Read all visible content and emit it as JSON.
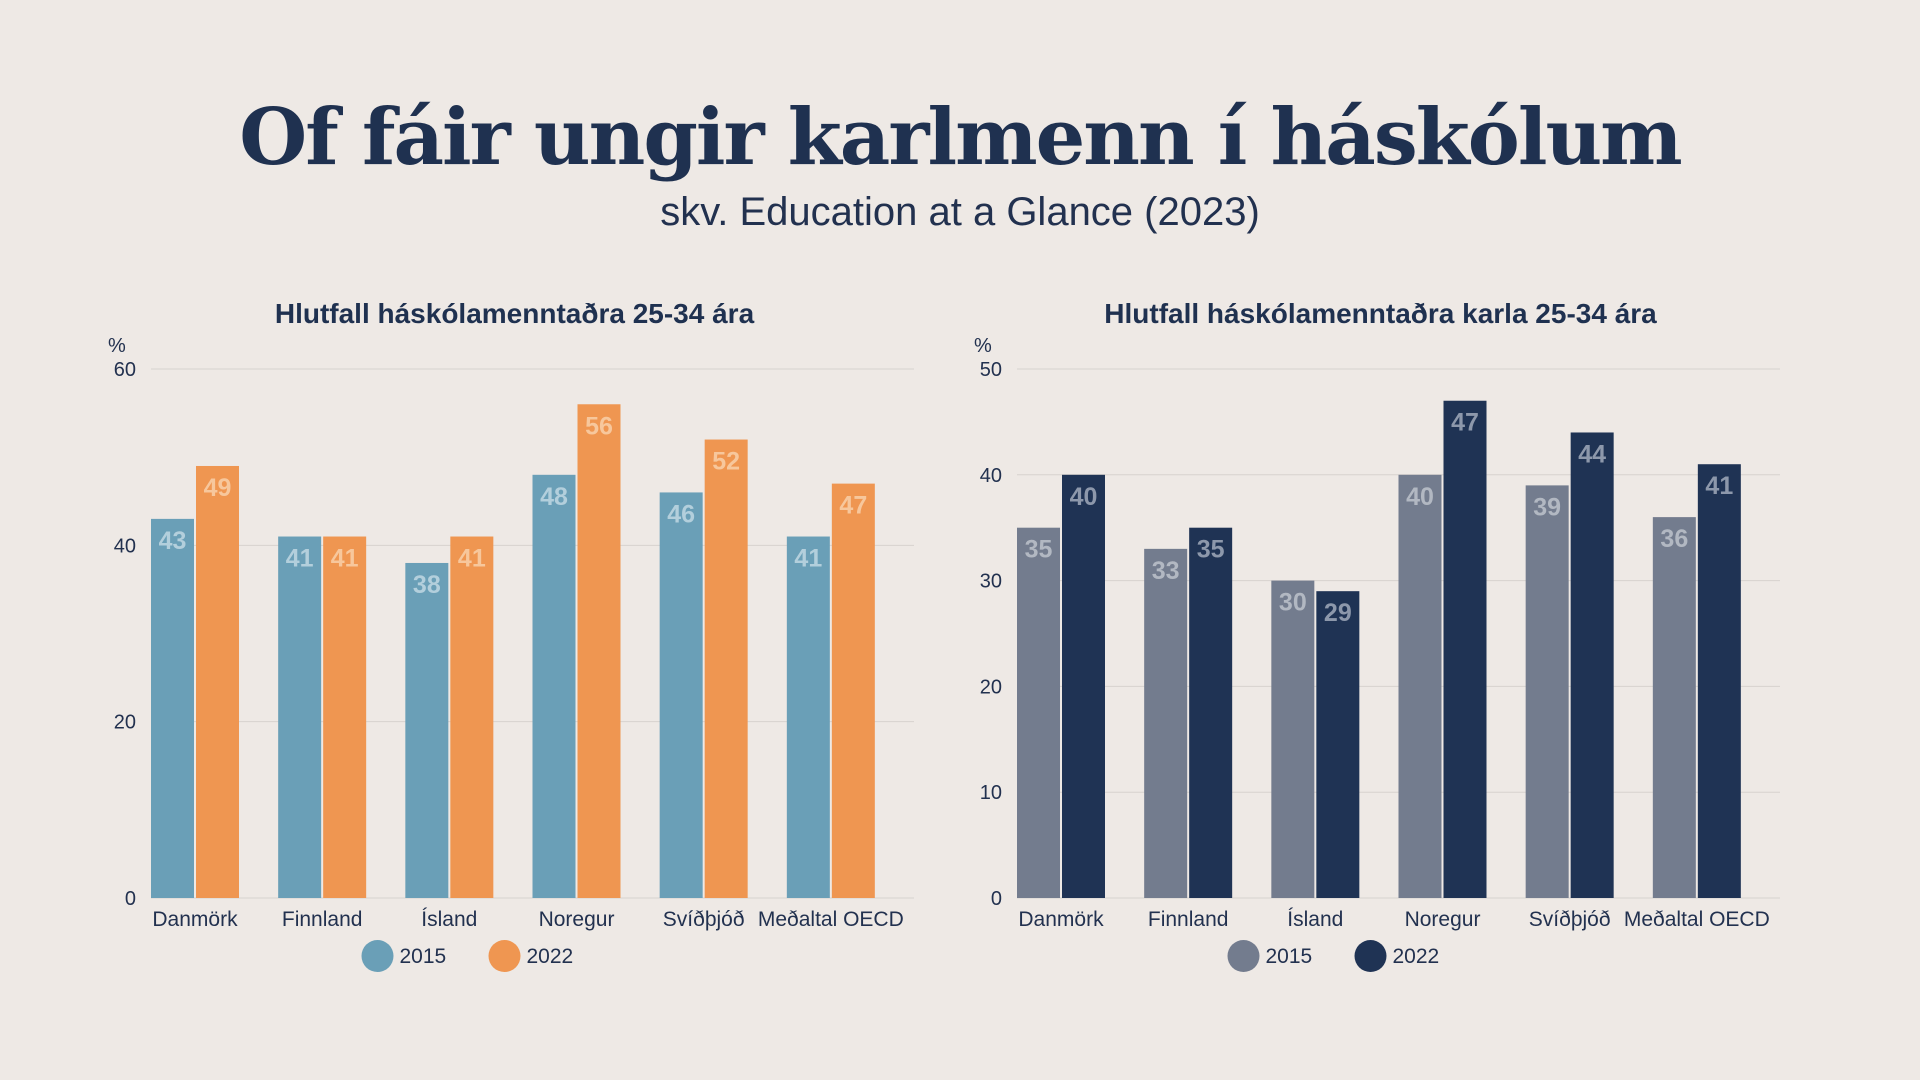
{
  "header": {
    "title": "Of fáir ungir karlmenn í háskólum",
    "subtitle": "skv. Education at a Glance (2023)"
  },
  "colors": {
    "background": "#eee9e5",
    "text": "#22314f",
    "gridline": "#d7d2ce"
  },
  "chart_data": [
    {
      "type": "bar",
      "title": "Hlutfall háskólamenntaðra 25-34 ára",
      "unit_label": "%",
      "xlabel": "",
      "ylabel": "",
      "ylim": [
        0,
        60
      ],
      "yticks": [
        0,
        20,
        40,
        60
      ],
      "grid": true,
      "legend_position": "bottom",
      "categories": [
        "Danmörk",
        "Finnland",
        "Ísland",
        "Noregur",
        "Svíðþjóð",
        "Meðaltal OECD"
      ],
      "series": [
        {
          "name": "2015",
          "color": "#6a9fb7",
          "label_color": "#b3cfdc",
          "values": [
            43,
            41,
            38,
            48,
            46,
            41
          ]
        },
        {
          "name": "2022",
          "color": "#ef9651",
          "label_color": "#f7c79c",
          "values": [
            49,
            41,
            41,
            56,
            52,
            47
          ]
        }
      ]
    },
    {
      "type": "bar",
      "title": "Hlutfall háskólamenntaðra karla 25-34 ára",
      "unit_label": "%",
      "xlabel": "",
      "ylabel": "",
      "ylim": [
        0,
        50
      ],
      "yticks": [
        0,
        10,
        20,
        30,
        40,
        50
      ],
      "grid": true,
      "legend_position": "bottom",
      "categories": [
        "Danmörk",
        "Finnland",
        "Ísland",
        "Noregur",
        "Svíðþjóð",
        "Meðaltal OECD"
      ],
      "series": [
        {
          "name": "2015",
          "color": "#737c8e",
          "label_color": "#b2b8c2",
          "values": [
            35,
            33,
            30,
            40,
            39,
            36
          ]
        },
        {
          "name": "2022",
          "color": "#1f3354",
          "label_color": "#8d98ab",
          "values": [
            40,
            35,
            29,
            47,
            44,
            41
          ]
        }
      ]
    }
  ]
}
